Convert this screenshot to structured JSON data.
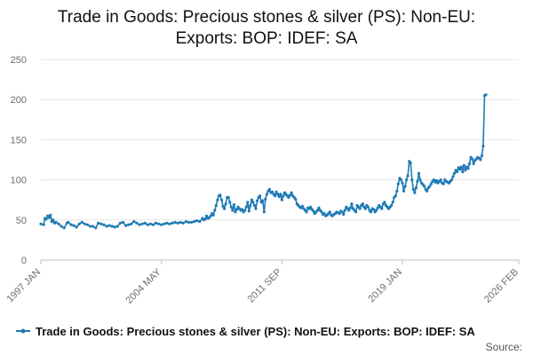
{
  "chart_data": {
    "type": "line",
    "title_lines": [
      "Trade in Goods: Precious stones & silver (PS): Non-EU:",
      "Exports: BOP: IDEF: SA"
    ],
    "xlabel": "",
    "ylabel": "",
    "ylim": [
      0,
      250
    ],
    "yticks": [
      "0",
      "50",
      "100",
      "150",
      "200",
      "250"
    ],
    "grid": true,
    "legend_position": "bottom",
    "x_range_months": [
      0,
      349
    ],
    "xticks": [
      {
        "label": "1997 JAN",
        "month": 0
      },
      {
        "label": "2004 MAY",
        "month": 88
      },
      {
        "label": "2011 SEP",
        "month": 176
      },
      {
        "label": "2019 JAN",
        "month": 264
      },
      {
        "label": "2026 FEB",
        "month": 349
      }
    ],
    "series": [
      {
        "name": "Trade in Goods: Precious stones & silver (PS): Non-EU: Exports: BOP: IDEF: SA",
        "color": "#1f7ab5",
        "points": [
          [
            0,
            45
          ],
          [
            2,
            44
          ],
          [
            3,
            52
          ],
          [
            4,
            51
          ],
          [
            5,
            55
          ],
          [
            6,
            53
          ],
          [
            7,
            56
          ],
          [
            8,
            48
          ],
          [
            9,
            50
          ],
          [
            10,
            46
          ],
          [
            11,
            47
          ],
          [
            13,
            45
          ],
          [
            15,
            42
          ],
          [
            17,
            40
          ],
          [
            19,
            46
          ],
          [
            20,
            47
          ],
          [
            22,
            44
          ],
          [
            24,
            43
          ],
          [
            26,
            41
          ],
          [
            28,
            45
          ],
          [
            30,
            47
          ],
          [
            32,
            45
          ],
          [
            34,
            44
          ],
          [
            36,
            42
          ],
          [
            38,
            42
          ],
          [
            40,
            40
          ],
          [
            42,
            46
          ],
          [
            44,
            45
          ],
          [
            46,
            44
          ],
          [
            48,
            42
          ],
          [
            50,
            43
          ],
          [
            52,
            42
          ],
          [
            54,
            41
          ],
          [
            56,
            42
          ],
          [
            58,
            46
          ],
          [
            60,
            47
          ],
          [
            62,
            43
          ],
          [
            64,
            44
          ],
          [
            66,
            45
          ],
          [
            68,
            48
          ],
          [
            70,
            46
          ],
          [
            72,
            44
          ],
          [
            74,
            45
          ],
          [
            76,
            46
          ],
          [
            78,
            44
          ],
          [
            80,
            45
          ],
          [
            82,
            44
          ],
          [
            84,
            46
          ],
          [
            86,
            45
          ],
          [
            88,
            44
          ],
          [
            90,
            45
          ],
          [
            92,
            46
          ],
          [
            94,
            45
          ],
          [
            96,
            46
          ],
          [
            98,
            47
          ],
          [
            100,
            46
          ],
          [
            102,
            47
          ],
          [
            104,
            46
          ],
          [
            106,
            48
          ],
          [
            108,
            47
          ],
          [
            110,
            47
          ],
          [
            112,
            48
          ],
          [
            114,
            49
          ],
          [
            116,
            48
          ],
          [
            118,
            52
          ],
          [
            119,
            50
          ],
          [
            120,
            51
          ],
          [
            121,
            55
          ],
          [
            122,
            52
          ],
          [
            123,
            53
          ],
          [
            124,
            55
          ],
          [
            125,
            58
          ],
          [
            126,
            56
          ],
          [
            127,
            62
          ],
          [
            128,
            68
          ],
          [
            129,
            75
          ],
          [
            130,
            80
          ],
          [
            131,
            81
          ],
          [
            132,
            75
          ],
          [
            133,
            67
          ],
          [
            134,
            64
          ],
          [
            135,
            70
          ],
          [
            136,
            78
          ],
          [
            137,
            78
          ],
          [
            138,
            72
          ],
          [
            139,
            66
          ],
          [
            140,
            62
          ],
          [
            141,
            69
          ],
          [
            142,
            60
          ],
          [
            143,
            63
          ],
          [
            144,
            66
          ],
          [
            145,
            64
          ],
          [
            146,
            62
          ],
          [
            147,
            63
          ],
          [
            148,
            60
          ],
          [
            149,
            62
          ],
          [
            150,
            66
          ],
          [
            151,
            72
          ],
          [
            152,
            61
          ],
          [
            153,
            68
          ],
          [
            154,
            75
          ],
          [
            155,
            72
          ],
          [
            156,
            68
          ],
          [
            157,
            64
          ],
          [
            158,
            74
          ],
          [
            159,
            78
          ],
          [
            160,
            80
          ],
          [
            161,
            72
          ],
          [
            162,
            74
          ],
          [
            163,
            60
          ],
          [
            164,
            76
          ],
          [
            165,
            82
          ],
          [
            166,
            86
          ],
          [
            167,
            88
          ],
          [
            168,
            84
          ],
          [
            169,
            85
          ],
          [
            170,
            82
          ],
          [
            171,
            80
          ],
          [
            172,
            85
          ],
          [
            173,
            82
          ],
          [
            174,
            79
          ],
          [
            175,
            82
          ],
          [
            176,
            75
          ],
          [
            177,
            80
          ],
          [
            178,
            84
          ],
          [
            179,
            82
          ],
          [
            180,
            80
          ],
          [
            181,
            78
          ],
          [
            182,
            81
          ],
          [
            183,
            84
          ],
          [
            184,
            80
          ],
          [
            185,
            78
          ],
          [
            186,
            76
          ],
          [
            187,
            70
          ],
          [
            188,
            68
          ],
          [
            189,
            66
          ],
          [
            190,
            65
          ],
          [
            191,
            67
          ],
          [
            192,
            64
          ],
          [
            193,
            62
          ],
          [
            194,
            60
          ],
          [
            195,
            65
          ],
          [
            196,
            64
          ],
          [
            197,
            66
          ],
          [
            198,
            63
          ],
          [
            199,
            61
          ],
          [
            200,
            58
          ],
          [
            201,
            60
          ],
          [
            202,
            62
          ],
          [
            203,
            65
          ],
          [
            204,
            62
          ],
          [
            205,
            60
          ],
          [
            206,
            57
          ],
          [
            207,
            58
          ],
          [
            208,
            55
          ],
          [
            209,
            56
          ],
          [
            210,
            58
          ],
          [
            211,
            60
          ],
          [
            212,
            56
          ],
          [
            213,
            55
          ],
          [
            214,
            57
          ],
          [
            215,
            58
          ],
          [
            216,
            60
          ],
          [
            217,
            59
          ],
          [
            218,
            58
          ],
          [
            219,
            61
          ],
          [
            220,
            60
          ],
          [
            221,
            57
          ],
          [
            222,
            62
          ],
          [
            223,
            66
          ],
          [
            224,
            64
          ],
          [
            225,
            62
          ],
          [
            226,
            65
          ],
          [
            227,
            70
          ],
          [
            228,
            64
          ],
          [
            229,
            62
          ],
          [
            230,
            60
          ],
          [
            231,
            68
          ],
          [
            232,
            66
          ],
          [
            233,
            64
          ],
          [
            234,
            68
          ],
          [
            235,
            70
          ],
          [
            236,
            66
          ],
          [
            237,
            64
          ],
          [
            238,
            68
          ],
          [
            239,
            66
          ],
          [
            240,
            62
          ],
          [
            241,
            60
          ],
          [
            242,
            64
          ],
          [
            243,
            63
          ],
          [
            244,
            60
          ],
          [
            245,
            62
          ],
          [
            246,
            65
          ],
          [
            247,
            68
          ],
          [
            248,
            66
          ],
          [
            249,
            64
          ],
          [
            250,
            70
          ],
          [
            251,
            72
          ],
          [
            252,
            68
          ],
          [
            253,
            66
          ],
          [
            254,
            64
          ],
          [
            255,
            66
          ],
          [
            256,
            68
          ],
          [
            257,
            72
          ],
          [
            258,
            78
          ],
          [
            259,
            80
          ],
          [
            260,
            86
          ],
          [
            261,
            95
          ],
          [
            262,
            102
          ],
          [
            263,
            100
          ],
          [
            264,
            96
          ],
          [
            265,
            86
          ],
          [
            266,
            92
          ],
          [
            267,
            100
          ],
          [
            268,
            105
          ],
          [
            269,
            123
          ],
          [
            270,
            121
          ],
          [
            271,
            100
          ],
          [
            272,
            88
          ],
          [
            273,
            84
          ],
          [
            274,
            90
          ],
          [
            275,
            98
          ],
          [
            276,
            108
          ],
          [
            277,
            100
          ],
          [
            278,
            96
          ],
          [
            279,
            94
          ],
          [
            280,
            92
          ],
          [
            281,
            88
          ],
          [
            282,
            86
          ],
          [
            283,
            90
          ],
          [
            284,
            92
          ],
          [
            285,
            95
          ],
          [
            286,
            98
          ],
          [
            287,
            100
          ],
          [
            288,
            97
          ],
          [
            289,
            99
          ],
          [
            290,
            96
          ],
          [
            291,
            98
          ],
          [
            292,
            100
          ],
          [
            293,
            96
          ],
          [
            294,
            95
          ],
          [
            295,
            100
          ],
          [
            296,
            98
          ],
          [
            297,
            97
          ],
          [
            298,
            96
          ],
          [
            299,
            98
          ],
          [
            300,
            100
          ],
          [
            301,
            104
          ],
          [
            302,
            108
          ],
          [
            303,
            112
          ],
          [
            304,
            110
          ],
          [
            305,
            115
          ],
          [
            306,
            113
          ],
          [
            307,
            116
          ],
          [
            308,
            110
          ],
          [
            309,
            118
          ],
          [
            310,
            112
          ],
          [
            311,
            116
          ],
          [
            312,
            114
          ],
          [
            313,
            120
          ],
          [
            314,
            128
          ],
          [
            315,
            126
          ],
          [
            316,
            120
          ],
          [
            317,
            124
          ],
          [
            318,
            126
          ],
          [
            319,
            128
          ],
          [
            320,
            127
          ],
          [
            321,
            125
          ],
          [
            322,
            130
          ],
          [
            323,
            142
          ],
          [
            324,
            205
          ],
          [
            325,
            206
          ]
        ]
      }
    ]
  },
  "legend": {
    "label": "Trade in Goods: Precious stones & silver (PS): Non-EU: Exports: BOP: IDEF: SA"
  },
  "source": {
    "label": "Source:"
  }
}
